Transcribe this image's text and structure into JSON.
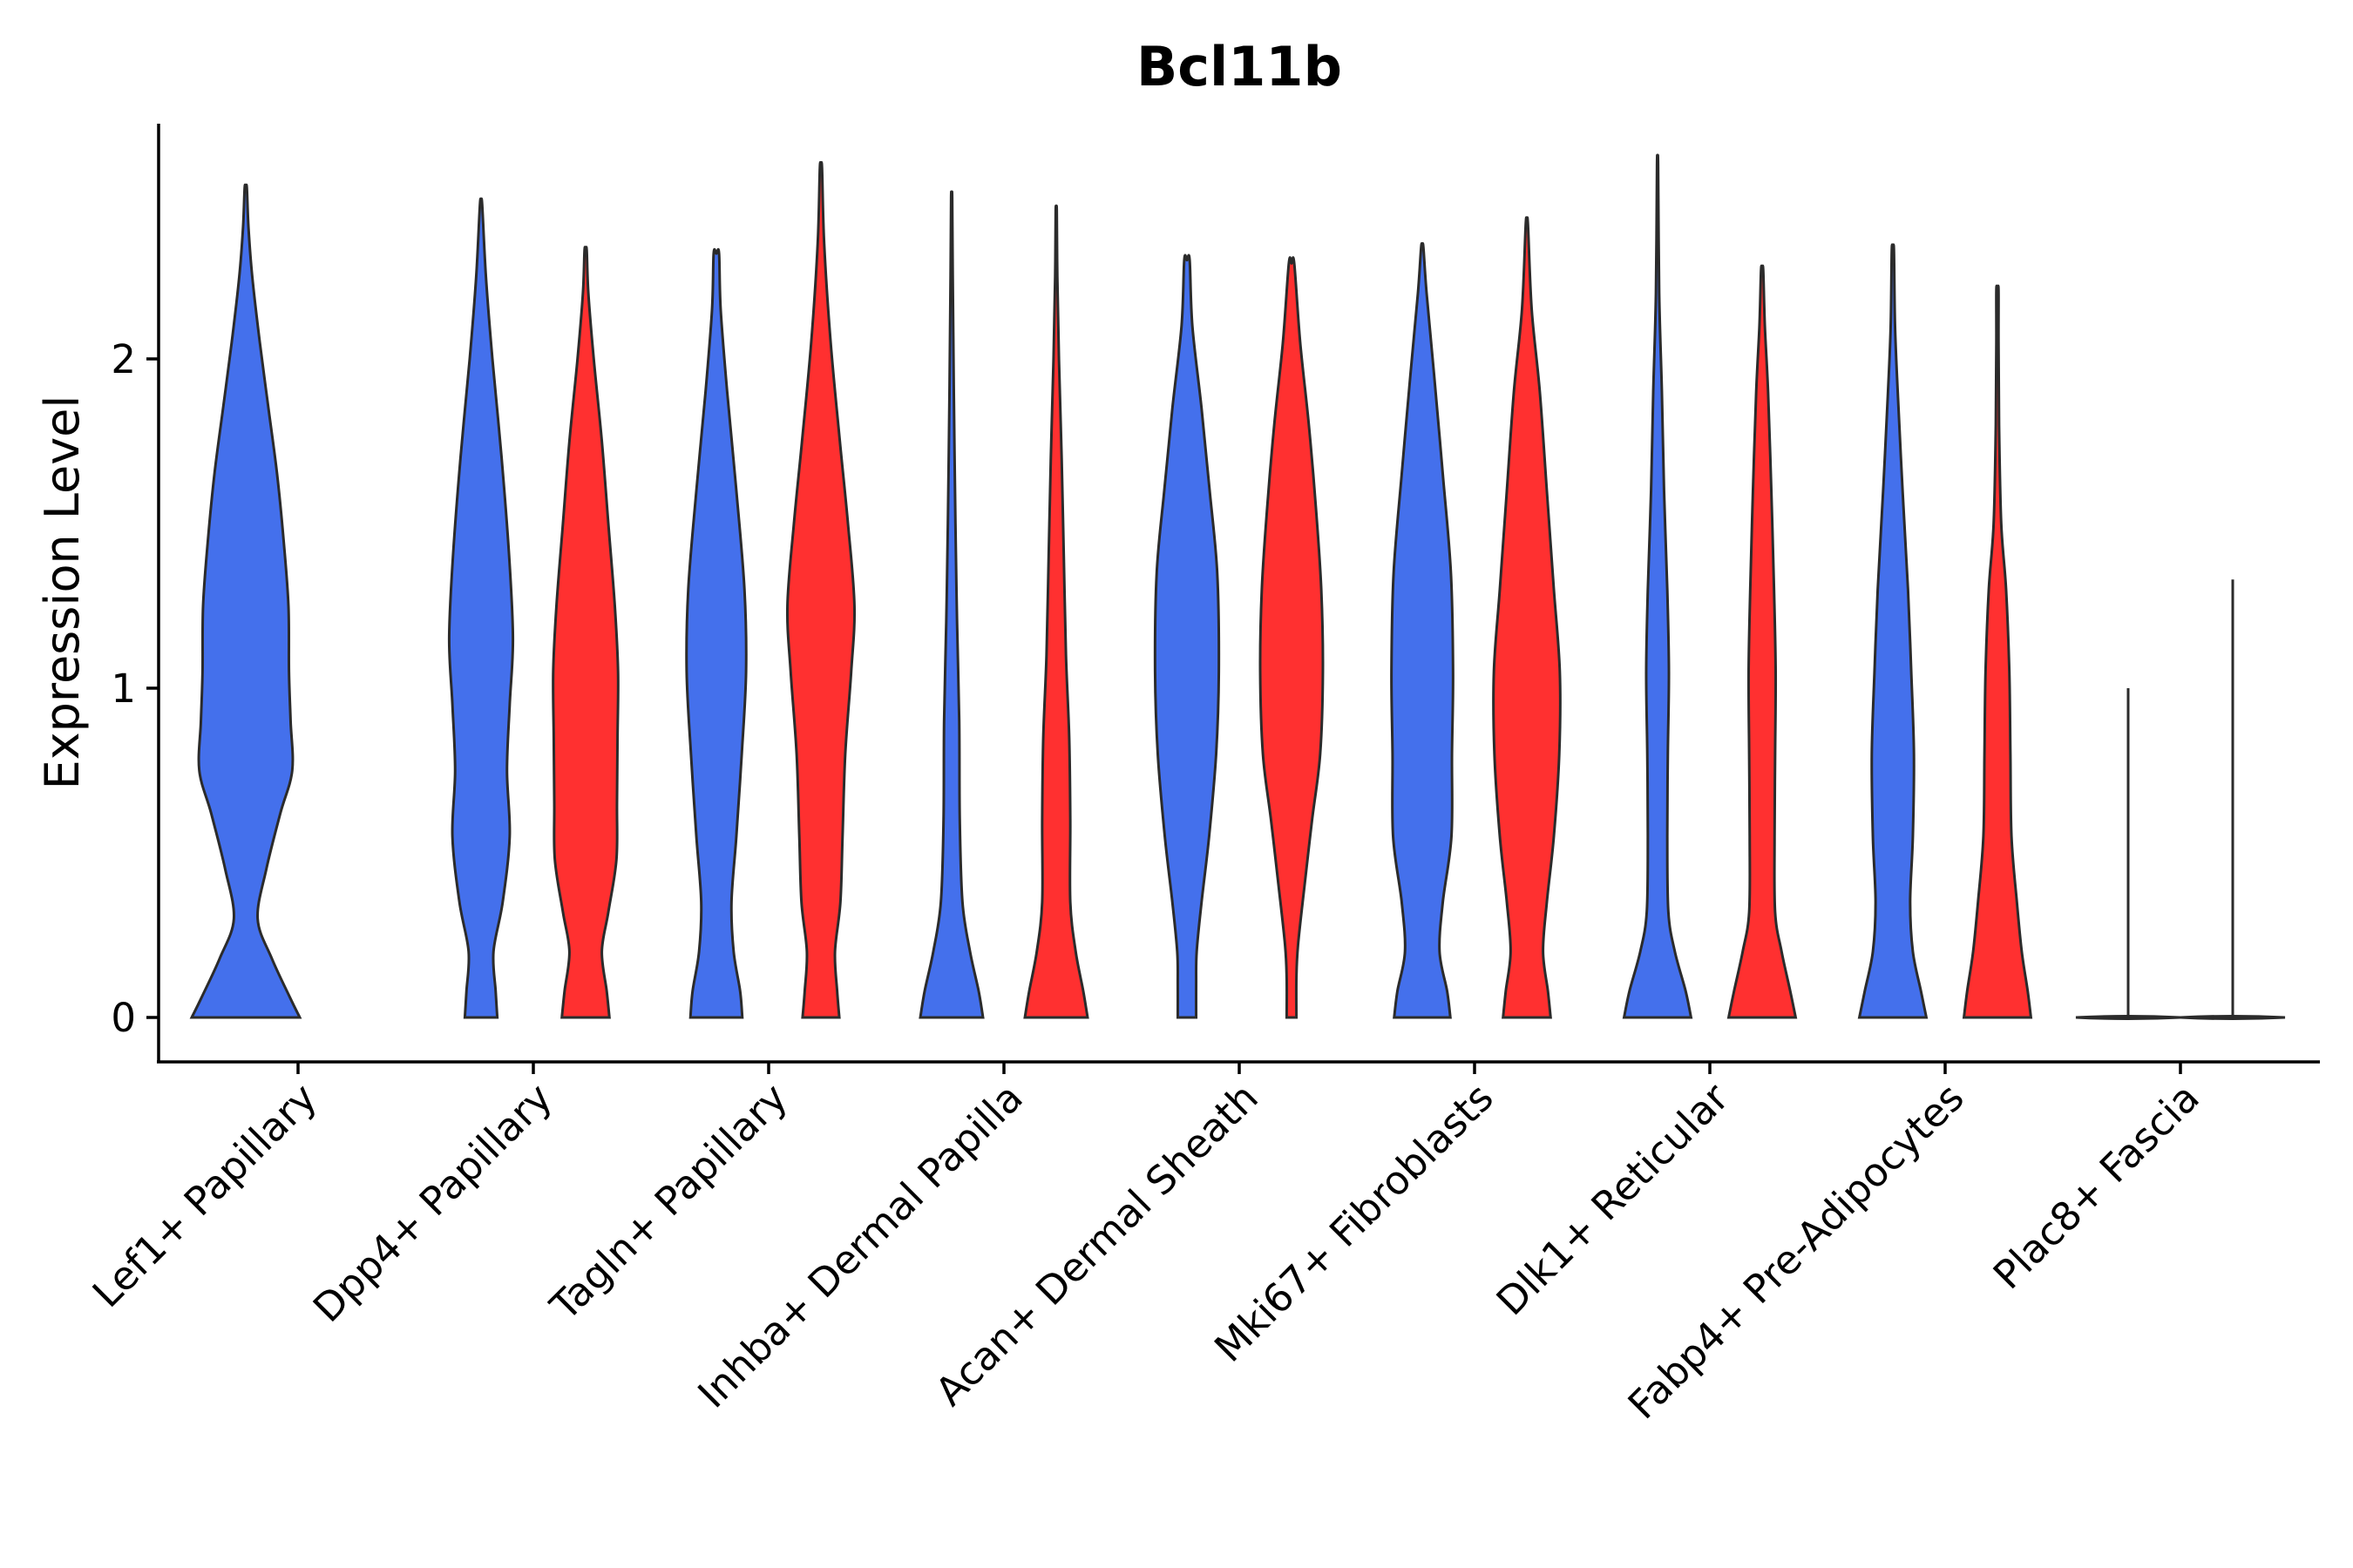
{
  "chart_data": {
    "type": "violin",
    "title": "Bcl11b",
    "xlabel": "",
    "ylabel": "Expression Level",
    "ylim": [
      -0.13,
      2.72
    ],
    "yticks": [
      0,
      1,
      2
    ],
    "grid": false,
    "legend": "none",
    "colors": {
      "group_a": "#4470EC",
      "group_b": "#FF3030",
      "neutral": "#444444"
    },
    "categories": [
      "Lef1+ Papillary",
      "Dpp4+ Papillary",
      "Tagln+ Papillary",
      "Inhba+ Dermal Papilla",
      "Acan+ Dermal Sheath",
      "Mki67+ Fibroblasts",
      "Dlk1+ Reticular",
      "Fabp4+ Pre-Adipocytes",
      "Plac8+ Fascia"
    ],
    "violins": [
      {
        "category": "Lef1+ Papillary",
        "group": "a",
        "ymax": 2.52,
        "density": [
          [
            0,
            1
          ],
          [
            0.06,
            0.82
          ],
          [
            0.18,
            0.48
          ],
          [
            0.3,
            0.22
          ],
          [
            0.45,
            0.38
          ],
          [
            0.62,
            0.64
          ],
          [
            0.75,
            0.86
          ],
          [
            0.9,
            0.83
          ],
          [
            1.05,
            0.8
          ],
          [
            1.25,
            0.79
          ],
          [
            1.45,
            0.7
          ],
          [
            1.65,
            0.58
          ],
          [
            1.85,
            0.42
          ],
          [
            2.05,
            0.26
          ],
          [
            2.25,
            0.12
          ],
          [
            2.4,
            0.05
          ],
          [
            2.52,
            0.02
          ]
        ]
      },
      {
        "category": "Dpp4+ Papillary",
        "group": "a",
        "ymax": 2.47,
        "density": [
          [
            0,
            0.3
          ],
          [
            0.08,
            0.27
          ],
          [
            0.2,
            0.23
          ],
          [
            0.35,
            0.4
          ],
          [
            0.55,
            0.53
          ],
          [
            0.75,
            0.48
          ],
          [
            0.95,
            0.53
          ],
          [
            1.15,
            0.59
          ],
          [
            1.4,
            0.52
          ],
          [
            1.7,
            0.38
          ],
          [
            2.0,
            0.21
          ],
          [
            2.25,
            0.09
          ],
          [
            2.47,
            0.02
          ]
        ]
      },
      {
        "category": "Dpp4+ Papillary",
        "group": "b",
        "ymax": 2.33,
        "density": [
          [
            0,
            0.44
          ],
          [
            0.08,
            0.39
          ],
          [
            0.2,
            0.3
          ],
          [
            0.32,
            0.42
          ],
          [
            0.48,
            0.57
          ],
          [
            0.65,
            0.58
          ],
          [
            0.85,
            0.59
          ],
          [
            1.05,
            0.6
          ],
          [
            1.25,
            0.54
          ],
          [
            1.5,
            0.42
          ],
          [
            1.75,
            0.3
          ],
          [
            2.0,
            0.15
          ],
          [
            2.2,
            0.05
          ],
          [
            2.33,
            0.02
          ]
        ]
      },
      {
        "category": "Tagln+ Papillary",
        "group": "a",
        "ymax": 2.32,
        "density": [
          [
            0,
            0.48
          ],
          [
            0.08,
            0.44
          ],
          [
            0.2,
            0.32
          ],
          [
            0.35,
            0.28
          ],
          [
            0.55,
            0.37
          ],
          [
            0.8,
            0.47
          ],
          [
            1.05,
            0.55
          ],
          [
            1.3,
            0.52
          ],
          [
            1.6,
            0.37
          ],
          [
            1.9,
            0.2
          ],
          [
            2.15,
            0.08
          ],
          [
            2.32,
            0.05
          ]
        ]
      },
      {
        "category": "Tagln+ Papillary",
        "group": "b",
        "ymax": 2.58,
        "density": [
          [
            0,
            0.34
          ],
          [
            0.08,
            0.3
          ],
          [
            0.2,
            0.26
          ],
          [
            0.35,
            0.36
          ],
          [
            0.55,
            0.4
          ],
          [
            0.8,
            0.45
          ],
          [
            1.05,
            0.56
          ],
          [
            1.25,
            0.62
          ],
          [
            1.5,
            0.5
          ],
          [
            1.75,
            0.35
          ],
          [
            2.05,
            0.18
          ],
          [
            2.35,
            0.06
          ],
          [
            2.58,
            0.02
          ]
        ]
      },
      {
        "category": "Inhba+ Dermal Papilla",
        "group": "a",
        "ymax": 2.49,
        "density": [
          [
            0,
            0.58
          ],
          [
            0.08,
            0.5
          ],
          [
            0.2,
            0.34
          ],
          [
            0.35,
            0.2
          ],
          [
            0.6,
            0.15
          ],
          [
            0.9,
            0.14
          ],
          [
            1.2,
            0.1
          ],
          [
            1.5,
            0.07
          ],
          [
            1.9,
            0.04
          ],
          [
            2.25,
            0.02
          ],
          [
            2.49,
            0.01
          ]
        ]
      },
      {
        "category": "Inhba+ Dermal Papilla",
        "group": "b",
        "ymax": 2.45,
        "density": [
          [
            0,
            0.58
          ],
          [
            0.08,
            0.5
          ],
          [
            0.2,
            0.36
          ],
          [
            0.35,
            0.26
          ],
          [
            0.6,
            0.26
          ],
          [
            0.85,
            0.24
          ],
          [
            1.1,
            0.18
          ],
          [
            1.4,
            0.14
          ],
          [
            1.7,
            0.1
          ],
          [
            2.0,
            0.05
          ],
          [
            2.25,
            0.02
          ],
          [
            2.45,
            0.01
          ]
        ]
      },
      {
        "category": "Acan+ Dermal Sheath",
        "group": "a",
        "ymax": 2.3,
        "density": [
          [
            0,
            0.17
          ],
          [
            0.1,
            0.17
          ],
          [
            0.2,
            0.18
          ],
          [
            0.35,
            0.27
          ],
          [
            0.55,
            0.41
          ],
          [
            0.8,
            0.54
          ],
          [
            1.05,
            0.59
          ],
          [
            1.35,
            0.56
          ],
          [
            1.6,
            0.42
          ],
          [
            1.85,
            0.27
          ],
          [
            2.1,
            0.1
          ],
          [
            2.3,
            0.05
          ]
        ]
      },
      {
        "category": "Acan+ Dermal Sheath",
        "group": "b",
        "ymax": 2.29,
        "density": [
          [
            0,
            0.09
          ],
          [
            0.12,
            0.09
          ],
          [
            0.22,
            0.12
          ],
          [
            0.4,
            0.24
          ],
          [
            0.6,
            0.38
          ],
          [
            0.8,
            0.53
          ],
          [
            1.05,
            0.58
          ],
          [
            1.3,
            0.55
          ],
          [
            1.55,
            0.45
          ],
          [
            1.8,
            0.32
          ],
          [
            2.05,
            0.16
          ],
          [
            2.29,
            0.05
          ]
        ]
      },
      {
        "category": "Mki67+ Fibroblasts",
        "group": "a",
        "ymax": 2.34,
        "density": [
          [
            0,
            0.52
          ],
          [
            0.08,
            0.46
          ],
          [
            0.2,
            0.32
          ],
          [
            0.35,
            0.38
          ],
          [
            0.55,
            0.54
          ],
          [
            0.8,
            0.55
          ],
          [
            1.05,
            0.57
          ],
          [
            1.35,
            0.53
          ],
          [
            1.65,
            0.38
          ],
          [
            1.95,
            0.22
          ],
          [
            2.2,
            0.08
          ],
          [
            2.34,
            0.02
          ]
        ]
      },
      {
        "category": "Mki67+ Fibroblasts",
        "group": "b",
        "ymax": 2.41,
        "density": [
          [
            0,
            0.44
          ],
          [
            0.08,
            0.39
          ],
          [
            0.2,
            0.3
          ],
          [
            0.35,
            0.37
          ],
          [
            0.55,
            0.5
          ],
          [
            0.8,
            0.6
          ],
          [
            1.05,
            0.61
          ],
          [
            1.3,
            0.5
          ],
          [
            1.6,
            0.37
          ],
          [
            1.9,
            0.24
          ],
          [
            2.15,
            0.09
          ],
          [
            2.41,
            0.02
          ]
        ]
      },
      {
        "category": "Dlk1+ Reticular",
        "group": "a",
        "ymax": 2.59,
        "density": [
          [
            0,
            0.62
          ],
          [
            0.08,
            0.52
          ],
          [
            0.2,
            0.32
          ],
          [
            0.32,
            0.2
          ],
          [
            0.55,
            0.18
          ],
          [
            0.8,
            0.19
          ],
          [
            1.05,
            0.21
          ],
          [
            1.3,
            0.18
          ],
          [
            1.6,
            0.12
          ],
          [
            1.9,
            0.08
          ],
          [
            2.2,
            0.03
          ],
          [
            2.59,
            0.01
          ]
        ]
      },
      {
        "category": "Dlk1+ Reticular",
        "group": "b",
        "ymax": 2.27,
        "density": [
          [
            0,
            0.62
          ],
          [
            0.08,
            0.52
          ],
          [
            0.2,
            0.36
          ],
          [
            0.32,
            0.24
          ],
          [
            0.55,
            0.23
          ],
          [
            0.8,
            0.24
          ],
          [
            1.05,
            0.25
          ],
          [
            1.3,
            0.22
          ],
          [
            1.6,
            0.17
          ],
          [
            1.9,
            0.11
          ],
          [
            2.1,
            0.05
          ],
          [
            2.27,
            0.02
          ]
        ]
      },
      {
        "category": "Fabp4+ Pre-Adipocytes",
        "group": "a",
        "ymax": 2.33,
        "density": [
          [
            0,
            0.62
          ],
          [
            0.08,
            0.52
          ],
          [
            0.2,
            0.37
          ],
          [
            0.35,
            0.32
          ],
          [
            0.55,
            0.37
          ],
          [
            0.8,
            0.39
          ],
          [
            1.05,
            0.34
          ],
          [
            1.3,
            0.28
          ],
          [
            1.6,
            0.18
          ],
          [
            1.9,
            0.09
          ],
          [
            2.1,
            0.04
          ],
          [
            2.33,
            0.02
          ]
        ]
      },
      {
        "category": "Fabp4+ Pre-Adipocytes",
        "group": "b",
        "ymax": 2.21,
        "density": [
          [
            0,
            0.62
          ],
          [
            0.08,
            0.56
          ],
          [
            0.2,
            0.45
          ],
          [
            0.35,
            0.36
          ],
          [
            0.55,
            0.26
          ],
          [
            0.8,
            0.24
          ],
          [
            1.05,
            0.22
          ],
          [
            1.3,
            0.16
          ],
          [
            1.5,
            0.07
          ],
          [
            1.8,
            0.03
          ],
          [
            2.05,
            0.02
          ],
          [
            2.21,
            0.02
          ]
        ]
      },
      {
        "category": "Plac8+ Fascia",
        "group": "a",
        "ymax": 1.0,
        "line": true
      },
      {
        "category": "Plac8+ Fascia",
        "group": "b",
        "ymax": 1.33,
        "line": true
      }
    ]
  }
}
